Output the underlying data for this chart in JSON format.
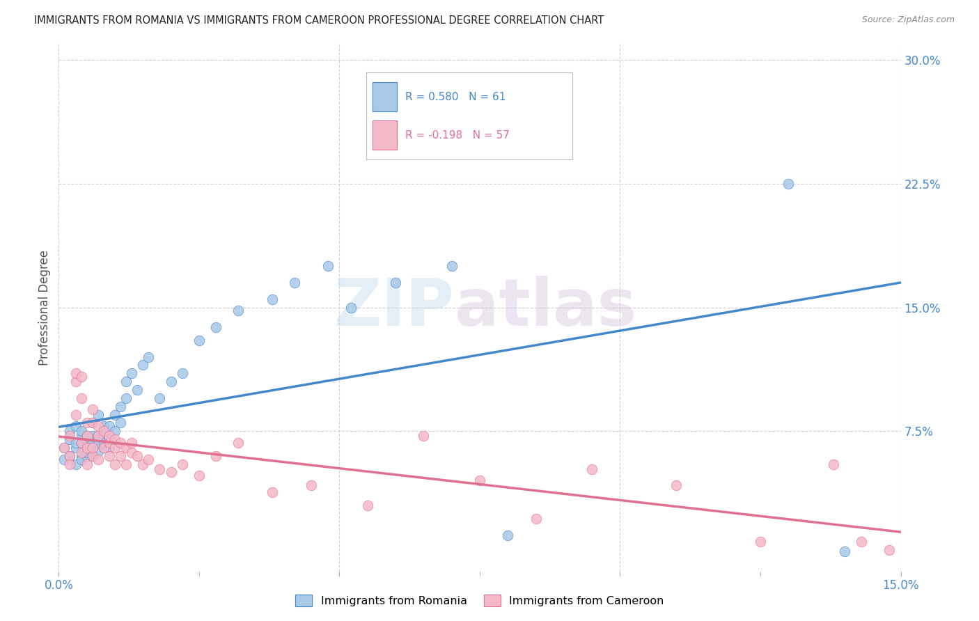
{
  "title": "IMMIGRANTS FROM ROMANIA VS IMMIGRANTS FROM CAMEROON PROFESSIONAL DEGREE CORRELATION CHART",
  "source": "Source: ZipAtlas.com",
  "ylabel": "Professional Degree",
  "legend_romania": "Immigrants from Romania",
  "legend_cameroon": "Immigrants from Cameroon",
  "R_romania": 0.58,
  "N_romania": 61,
  "R_cameroon": -0.198,
  "N_cameroon": 57,
  "color_romania": "#a8c8e8",
  "color_cameroon": "#f4b8c8",
  "line_color_romania": "#4488cc",
  "line_color_cameroon": "#e07090",
  "xmin": 0.0,
  "xmax": 0.15,
  "ymin": -0.01,
  "ymax": 0.31,
  "ytick_vals": [
    0.075,
    0.15,
    0.225,
    0.3
  ],
  "ytick_labels": [
    "7.5%",
    "15.0%",
    "22.5%",
    "30.0%"
  ],
  "romania_x": [
    0.001,
    0.001,
    0.002,
    0.002,
    0.002,
    0.003,
    0.003,
    0.003,
    0.003,
    0.004,
    0.004,
    0.004,
    0.004,
    0.004,
    0.005,
    0.005,
    0.005,
    0.005,
    0.005,
    0.005,
    0.006,
    0.006,
    0.006,
    0.006,
    0.006,
    0.007,
    0.007,
    0.007,
    0.007,
    0.008,
    0.008,
    0.008,
    0.008,
    0.009,
    0.009,
    0.009,
    0.01,
    0.01,
    0.011,
    0.011,
    0.012,
    0.012,
    0.013,
    0.014,
    0.015,
    0.016,
    0.018,
    0.02,
    0.022,
    0.025,
    0.028,
    0.032,
    0.038,
    0.042,
    0.048,
    0.052,
    0.06,
    0.07,
    0.08,
    0.13,
    0.14
  ],
  "romania_y": [
    0.058,
    0.065,
    0.06,
    0.07,
    0.075,
    0.055,
    0.065,
    0.068,
    0.078,
    0.06,
    0.068,
    0.073,
    0.058,
    0.075,
    0.06,
    0.065,
    0.068,
    0.062,
    0.07,
    0.072,
    0.06,
    0.065,
    0.068,
    0.072,
    0.08,
    0.063,
    0.068,
    0.072,
    0.085,
    0.065,
    0.072,
    0.078,
    0.068,
    0.065,
    0.07,
    0.078,
    0.075,
    0.085,
    0.08,
    0.09,
    0.095,
    0.105,
    0.11,
    0.1,
    0.115,
    0.12,
    0.095,
    0.105,
    0.11,
    0.13,
    0.138,
    0.148,
    0.155,
    0.165,
    0.175,
    0.15,
    0.165,
    0.175,
    0.012,
    0.225,
    0.002
  ],
  "cameroon_x": [
    0.001,
    0.002,
    0.002,
    0.002,
    0.003,
    0.003,
    0.003,
    0.004,
    0.004,
    0.004,
    0.004,
    0.005,
    0.005,
    0.005,
    0.005,
    0.006,
    0.006,
    0.006,
    0.006,
    0.007,
    0.007,
    0.007,
    0.008,
    0.008,
    0.009,
    0.009,
    0.009,
    0.01,
    0.01,
    0.01,
    0.011,
    0.011,
    0.012,
    0.012,
    0.013,
    0.013,
    0.014,
    0.015,
    0.016,
    0.018,
    0.02,
    0.022,
    0.025,
    0.028,
    0.032,
    0.038,
    0.045,
    0.055,
    0.065,
    0.075,
    0.085,
    0.095,
    0.11,
    0.125,
    0.138,
    0.143,
    0.148
  ],
  "cameroon_y": [
    0.065,
    0.072,
    0.06,
    0.055,
    0.105,
    0.085,
    0.11,
    0.068,
    0.095,
    0.108,
    0.062,
    0.08,
    0.055,
    0.065,
    0.072,
    0.06,
    0.08,
    0.065,
    0.088,
    0.058,
    0.072,
    0.078,
    0.065,
    0.075,
    0.068,
    0.06,
    0.072,
    0.065,
    0.07,
    0.055,
    0.06,
    0.068,
    0.055,
    0.065,
    0.062,
    0.068,
    0.06,
    0.055,
    0.058,
    0.052,
    0.05,
    0.055,
    0.048,
    0.06,
    0.068,
    0.038,
    0.042,
    0.03,
    0.072,
    0.045,
    0.022,
    0.052,
    0.042,
    0.008,
    0.055,
    0.008,
    0.003
  ],
  "watermark_zip": "ZIP",
  "watermark_atlas": "atlas",
  "background_color": "#ffffff",
  "tick_color": "#4488cc",
  "axis_label_color": "#555555"
}
